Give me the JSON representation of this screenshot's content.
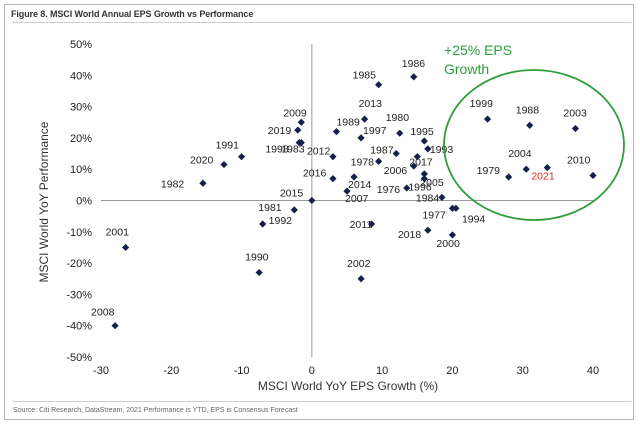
{
  "figure_title": "Figure 8. MSCI World Annual EPS Growth vs Performance",
  "source": "Source: Citi Research, DataStream, 2021 Performance is YTD, EPS is Consensus Forecast",
  "annotation": {
    "line1": "+25% EPS",
    "line2": "Growth",
    "color": "#2e9e3b"
  },
  "chart_data": {
    "type": "scatter",
    "xlabel": "MSCI World YoY EPS Growth (%)",
    "ylabel": "MSCI World YoY Performance",
    "xlim": [
      -30,
      40
    ],
    "ylim": [
      -50,
      50
    ],
    "x_ticks": [
      "-30",
      "-20",
      "-10",
      "0",
      "10",
      "20",
      "30",
      "40"
    ],
    "y_ticks": [
      "50%",
      "40%",
      "30%",
      "20%",
      "10%",
      "0%",
      "-10%",
      "-20%",
      "-30%",
      "-40%",
      "-50%"
    ],
    "grid": false,
    "marker_color": "#17204d",
    "highlight_color": "#e0261b",
    "points": [
      {
        "label": "1985",
        "x": 9.5,
        "y": 37
      },
      {
        "label": "1986",
        "x": 14.5,
        "y": 39.5
      },
      {
        "label": "1980",
        "x": 12.5,
        "y": 21.5
      },
      {
        "label": "2009",
        "x": -1.5,
        "y": 25
      },
      {
        "label": "1989",
        "x": 3.5,
        "y": 22
      },
      {
        "label": "2013",
        "x": 7.5,
        "y": 26
      },
      {
        "label": "2019",
        "x": -2,
        "y": 22.5
      },
      {
        "label": "1997",
        "x": 7,
        "y": 20
      },
      {
        "label": "1991",
        "x": -10,
        "y": 14
      },
      {
        "label": "1998",
        "x": -1.5,
        "y": 18.5
      },
      {
        "label": "1983",
        "x": -1.8,
        "y": 18.5
      },
      {
        "label": "2012",
        "x": 3,
        "y": 14
      },
      {
        "label": "2020",
        "x": -12.5,
        "y": 11.5
      },
      {
        "label": "1995",
        "x": 16,
        "y": 19
      },
      {
        "label": "1993",
        "x": 16.5,
        "y": 16.5
      },
      {
        "label": "1987",
        "x": 12,
        "y": 15
      },
      {
        "label": "2017",
        "x": 15,
        "y": 14
      },
      {
        "label": "1978",
        "x": 9.5,
        "y": 12.5
      },
      {
        "label": "2006",
        "x": 14.5,
        "y": 11
      },
      {
        "label": "2005",
        "x": 16,
        "y": 8.5
      },
      {
        "label": "1996",
        "x": 16,
        "y": 7
      },
      {
        "label": "2016",
        "x": 3,
        "y": 7
      },
      {
        "label": "2014",
        "x": 6,
        "y": 7.5
      },
      {
        "label": "1982",
        "x": -15.5,
        "y": 5.5
      },
      {
        "label": "2007",
        "x": 5,
        "y": 3
      },
      {
        "label": "1976",
        "x": 13.5,
        "y": 4
      },
      {
        "label": "1984",
        "x": 18.5,
        "y": 1
      },
      {
        "label": "2015",
        "x": 0,
        "y": 0
      },
      {
        "label": "1981",
        "x": -2.5,
        "y": -3
      },
      {
        "label": "1992",
        "x": -7,
        "y": -7.5
      },
      {
        "label": "1977",
        "x": 20,
        "y": -2.5
      },
      {
        "label": "1994",
        "x": 20.5,
        "y": -2.5
      },
      {
        "label": "2011",
        "x": 8.5,
        "y": -7.5
      },
      {
        "label": "2018",
        "x": 16.5,
        "y": -9.5
      },
      {
        "label": "2000",
        "x": 20,
        "y": -11
      },
      {
        "label": "2001",
        "x": -26.5,
        "y": -15
      },
      {
        "label": "1990",
        "x": -7.5,
        "y": -23
      },
      {
        "label": "2002",
        "x": 7,
        "y": -25
      },
      {
        "label": "2008",
        "x": -28,
        "y": -40
      },
      {
        "label": "1999",
        "x": 25,
        "y": 26
      },
      {
        "label": "1988",
        "x": 31,
        "y": 24
      },
      {
        "label": "2003",
        "x": 37.5,
        "y": 23
      },
      {
        "label": "2004",
        "x": 30.5,
        "y": 10
      },
      {
        "label": "1979",
        "x": 28,
        "y": 7.5
      },
      {
        "label": "2021",
        "x": 33.5,
        "y": 10.5,
        "highlight": true
      },
      {
        "label": "2010",
        "x": 40,
        "y": 8
      }
    ]
  }
}
